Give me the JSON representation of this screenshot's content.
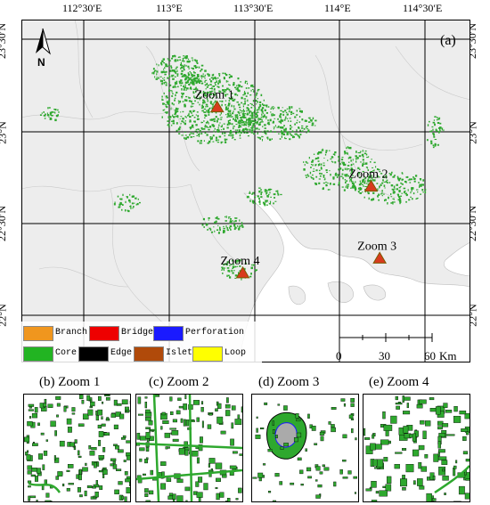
{
  "lon_ticks": [
    "112°30′E",
    "113°E",
    "113°30′E",
    "114°E",
    "114°30′E"
  ],
  "lat_ticks": [
    "23°30′N",
    "23°N",
    "22°30′N",
    "22°N"
  ],
  "panel_label": "(a)",
  "north_label": "N",
  "zoom_markers": [
    {
      "label": "Zoom 1",
      "lon": 113.28,
      "lat": 23.13
    },
    {
      "label": "Zoom 2",
      "lon": 114.18,
      "lat": 22.7
    },
    {
      "label": "Zoom 3",
      "lon": 114.23,
      "lat": 22.31
    },
    {
      "label": "Zoom 4",
      "lon": 113.43,
      "lat": 22.23
    }
  ],
  "legend": [
    {
      "label": "Branch",
      "color": "#f0961e"
    },
    {
      "label": "Bridge",
      "color": "#ee0000"
    },
    {
      "label": "Perforation",
      "color": "#1a1aff"
    },
    {
      "label": "Core",
      "color": "#22b422"
    },
    {
      "label": "Edge",
      "color": "#000000"
    },
    {
      "label": "Islet",
      "color": "#b04a0a"
    },
    {
      "label": "Loop",
      "color": "#ffff00"
    }
  ],
  "scale_bar": {
    "ticks": [
      "0",
      "30",
      "60"
    ],
    "unit": "Km"
  },
  "zoom_panels": [
    {
      "title": "(b) Zoom 1"
    },
    {
      "title": "(c) Zoom 2"
    },
    {
      "title": "(d) Zoom 3"
    },
    {
      "title": "(e) Zoom 4"
    }
  ],
  "colors": {
    "land": "#ededed",
    "water": "#ffffff",
    "green": "#2ea82e",
    "marker": "#d93a1e",
    "marker_edge": "#7a5a00"
  }
}
